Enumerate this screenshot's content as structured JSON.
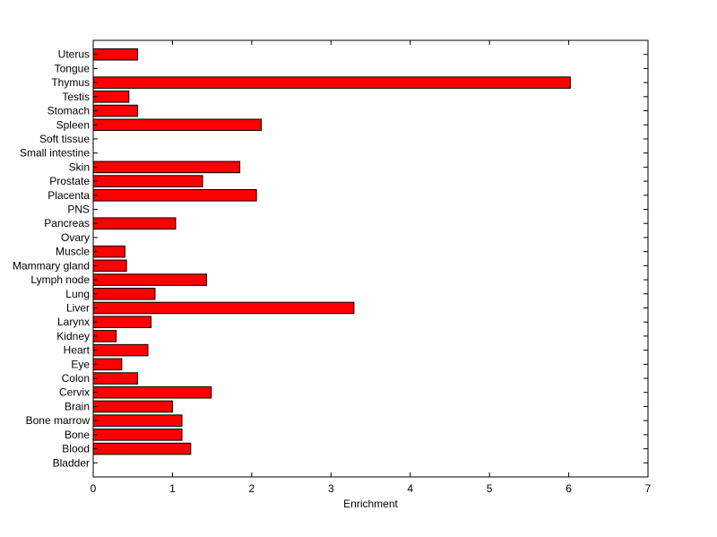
{
  "chart_data": {
    "type": "bar",
    "orientation": "horizontal",
    "title": "",
    "xlabel": "Enrichment",
    "ylabel": "",
    "xlim": [
      0,
      7
    ],
    "x_ticks": [
      0,
      1,
      2,
      3,
      4,
      5,
      6,
      7
    ],
    "grid": false,
    "bar_color": "#ff0000",
    "bar_edge_color": "#000000",
    "categories": [
      "Bladder",
      "Blood",
      "Bone",
      "Bone marrow",
      "Brain",
      "Cervix",
      "Colon",
      "Eye",
      "Heart",
      "Kidney",
      "Larynx",
      "Liver",
      "Lung",
      "Lymph node",
      "Mammary gland",
      "Muscle",
      "Ovary",
      "Pancreas",
      "PNS",
      "Placenta",
      "Prostate",
      "Skin",
      "Small intestine",
      "Soft tissue",
      "Spleen",
      "Stomach",
      "Testis",
      "Thymus",
      "Tongue",
      "Uterus"
    ],
    "values": [
      0,
      1.23,
      1.12,
      1.12,
      1.0,
      1.49,
      0.56,
      0.36,
      0.69,
      0.29,
      0.73,
      3.29,
      0.78,
      1.43,
      0.42,
      0.4,
      0,
      1.04,
      0,
      2.06,
      1.38,
      1.85,
      0,
      0,
      2.12,
      0.56,
      0.45,
      6.02,
      0,
      0.56
    ]
  }
}
